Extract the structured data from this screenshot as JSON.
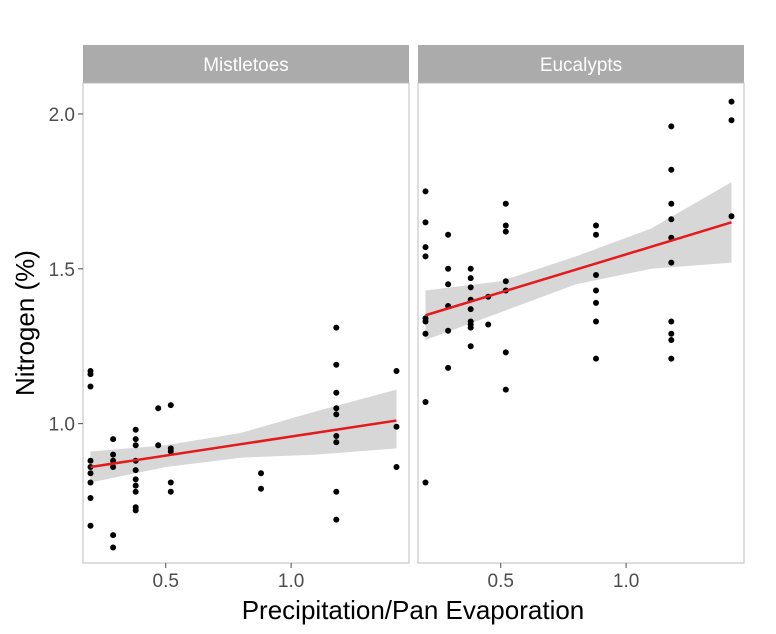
{
  "chart_data": {
    "type": "scatter",
    "xlabel": "Precipitation/Pan Evaporation",
    "ylabel": "Nitrogen (%)",
    "xlim": [
      0.17,
      1.47
    ],
    "ylim": [
      0.55,
      2.1
    ],
    "x_ticks": [
      0.5,
      1.0
    ],
    "x_tick_labels": [
      "0.5",
      "1.0"
    ],
    "y_ticks": [
      1.0,
      1.5,
      2.0
    ],
    "y_tick_labels": [
      "1.0",
      "1.5",
      "2.0"
    ],
    "grid": false,
    "point_color": "#000000",
    "fit_color": "#e41a1c",
    "band_color": "#d3d3d3",
    "strip_color": "#ababab",
    "panels": [
      {
        "name": "Mistletoes",
        "points": [
          [
            0.2,
            1.17
          ],
          [
            0.2,
            1.16
          ],
          [
            0.2,
            1.12
          ],
          [
            0.2,
            0.88
          ],
          [
            0.2,
            0.86
          ],
          [
            0.2,
            0.84
          ],
          [
            0.2,
            0.81
          ],
          [
            0.2,
            0.76
          ],
          [
            0.2,
            0.67
          ],
          [
            0.29,
            0.95
          ],
          [
            0.29,
            0.9
          ],
          [
            0.29,
            0.88
          ],
          [
            0.29,
            0.86
          ],
          [
            0.29,
            0.64
          ],
          [
            0.29,
            0.6
          ],
          [
            0.38,
            0.98
          ],
          [
            0.38,
            0.95
          ],
          [
            0.38,
            0.93
          ],
          [
            0.38,
            0.88
          ],
          [
            0.38,
            0.85
          ],
          [
            0.38,
            0.82
          ],
          [
            0.38,
            0.8
          ],
          [
            0.38,
            0.78
          ],
          [
            0.38,
            0.73
          ],
          [
            0.38,
            0.72
          ],
          [
            0.47,
            1.05
          ],
          [
            0.47,
            0.93
          ],
          [
            0.52,
            1.06
          ],
          [
            0.52,
            0.92
          ],
          [
            0.52,
            0.91
          ],
          [
            0.52,
            0.81
          ],
          [
            0.52,
            0.78
          ],
          [
            0.88,
            0.84
          ],
          [
            0.88,
            0.79
          ],
          [
            1.18,
            1.31
          ],
          [
            1.18,
            1.19
          ],
          [
            1.18,
            1.1
          ],
          [
            1.18,
            1.05
          ],
          [
            1.18,
            1.03
          ],
          [
            1.18,
            0.96
          ],
          [
            1.18,
            0.94
          ],
          [
            1.18,
            0.78
          ],
          [
            1.18,
            0.69
          ],
          [
            1.42,
            1.17
          ],
          [
            1.42,
            0.99
          ],
          [
            1.42,
            0.86
          ]
        ],
        "fit": {
          "x": [
            0.2,
            1.42
          ],
          "y": [
            0.86,
            1.01
          ]
        },
        "band": {
          "x": [
            0.2,
            0.5,
            0.8,
            1.1,
            1.42
          ],
          "lower": [
            0.81,
            0.86,
            0.89,
            0.9,
            0.92
          ],
          "upper": [
            0.91,
            0.93,
            0.97,
            1.04,
            1.11
          ]
        }
      },
      {
        "name": "Eucalypts",
        "points": [
          [
            0.2,
            1.75
          ],
          [
            0.2,
            1.65
          ],
          [
            0.2,
            1.57
          ],
          [
            0.2,
            1.54
          ],
          [
            0.2,
            1.34
          ],
          [
            0.2,
            1.33
          ],
          [
            0.2,
            1.29
          ],
          [
            0.2,
            1.07
          ],
          [
            0.2,
            0.81
          ],
          [
            0.29,
            1.61
          ],
          [
            0.29,
            1.5
          ],
          [
            0.29,
            1.45
          ],
          [
            0.29,
            1.38
          ],
          [
            0.29,
            1.3
          ],
          [
            0.29,
            1.18
          ],
          [
            0.38,
            1.5
          ],
          [
            0.38,
            1.47
          ],
          [
            0.38,
            1.44
          ],
          [
            0.38,
            1.4
          ],
          [
            0.38,
            1.37
          ],
          [
            0.38,
            1.33
          ],
          [
            0.38,
            1.32
          ],
          [
            0.38,
            1.31
          ],
          [
            0.38,
            1.25
          ],
          [
            0.45,
            1.41
          ],
          [
            0.45,
            1.32
          ],
          [
            0.52,
            1.71
          ],
          [
            0.52,
            1.64
          ],
          [
            0.52,
            1.62
          ],
          [
            0.52,
            1.46
          ],
          [
            0.52,
            1.43
          ],
          [
            0.52,
            1.23
          ],
          [
            0.52,
            1.11
          ],
          [
            0.88,
            1.64
          ],
          [
            0.88,
            1.61
          ],
          [
            0.88,
            1.48
          ],
          [
            0.88,
            1.43
          ],
          [
            0.88,
            1.39
          ],
          [
            0.88,
            1.33
          ],
          [
            0.88,
            1.21
          ],
          [
            1.18,
            1.96
          ],
          [
            1.18,
            1.82
          ],
          [
            1.18,
            1.71
          ],
          [
            1.18,
            1.66
          ],
          [
            1.18,
            1.6
          ],
          [
            1.18,
            1.52
          ],
          [
            1.18,
            1.33
          ],
          [
            1.18,
            1.29
          ],
          [
            1.18,
            1.27
          ],
          [
            1.18,
            1.21
          ],
          [
            1.42,
            2.04
          ],
          [
            1.42,
            1.98
          ],
          [
            1.42,
            1.67
          ]
        ],
        "fit": {
          "x": [
            0.2,
            1.42
          ],
          "y": [
            1.35,
            1.65
          ]
        },
        "band": {
          "x": [
            0.2,
            0.5,
            0.8,
            1.1,
            1.42
          ],
          "lower": [
            1.27,
            1.36,
            1.45,
            1.5,
            1.52
          ],
          "upper": [
            1.43,
            1.46,
            1.54,
            1.63,
            1.78
          ]
        }
      }
    ]
  }
}
